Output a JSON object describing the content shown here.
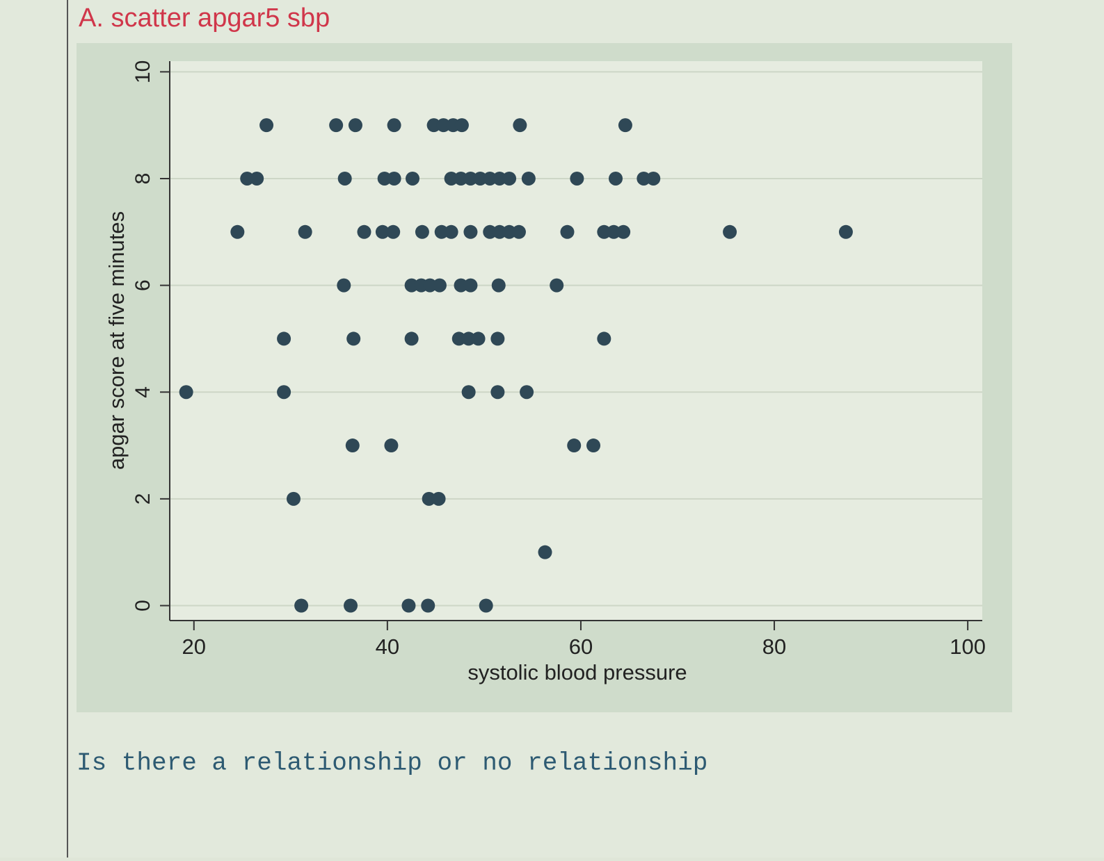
{
  "header": {
    "title": "A. scatter apgar5 sbp"
  },
  "chart_data": {
    "type": "scatter",
    "xlabel": "systolic blood pressure",
    "ylabel": "apgar score at five minutes",
    "color": "#2f4856",
    "x": [
      27.5,
      34.7,
      36.7,
      40.7,
      44.8,
      45.8,
      46.8,
      47.7,
      53.7,
      64.6,
      25.5,
      26.5,
      35.6,
      39.7,
      40.7,
      42.6,
      46.6,
      47.6,
      48.6,
      49.6,
      50.6,
      51.6,
      52.6,
      54.6,
      59.6,
      63.6,
      66.5,
      67.5,
      24.5,
      31.5,
      37.6,
      39.5,
      40.6,
      43.6,
      45.6,
      46.6,
      48.6,
      50.6,
      51.6,
      52.6,
      53.6,
      58.6,
      62.4,
      63.4,
      64.4,
      75.4,
      87.4,
      35.5,
      42.5,
      43.5,
      44.4,
      45.4,
      47.6,
      48.6,
      51.5,
      57.5,
      29.3,
      36.5,
      42.5,
      47.4,
      48.4,
      49.4,
      51.4,
      62.4,
      19.2,
      29.3,
      48.4,
      51.4,
      54.4,
      36.4,
      40.4,
      59.3,
      61.3,
      30.3,
      44.3,
      45.3,
      56.3,
      31.1,
      36.2,
      42.2,
      44.2,
      50.2
    ],
    "values": [
      9,
      9,
      9,
      9,
      9,
      9,
      9,
      9,
      9,
      9,
      8,
      8,
      8,
      8,
      8,
      8,
      8,
      8,
      8,
      8,
      8,
      8,
      8,
      8,
      8,
      8,
      8,
      8,
      7,
      7,
      7,
      7,
      7,
      7,
      7,
      7,
      7,
      7,
      7,
      7,
      7,
      7,
      7,
      7,
      7,
      7,
      7,
      6,
      6,
      6,
      6,
      6,
      6,
      6,
      6,
      6,
      5,
      5,
      5,
      5,
      5,
      5,
      5,
      5,
      4,
      4,
      4,
      4,
      4,
      3,
      3,
      3,
      3,
      2,
      2,
      2,
      1,
      0,
      0,
      0,
      0,
      0
    ],
    "xlim": [
      17.5,
      101.5
    ],
    "xticks": [
      20,
      40,
      60,
      80,
      100
    ],
    "ylim": [
      -0.28,
      10.2
    ],
    "yticks": [
      0,
      2,
      4,
      6,
      8,
      10
    ],
    "grid": true
  },
  "question": "Is there a relationship or no relationship"
}
